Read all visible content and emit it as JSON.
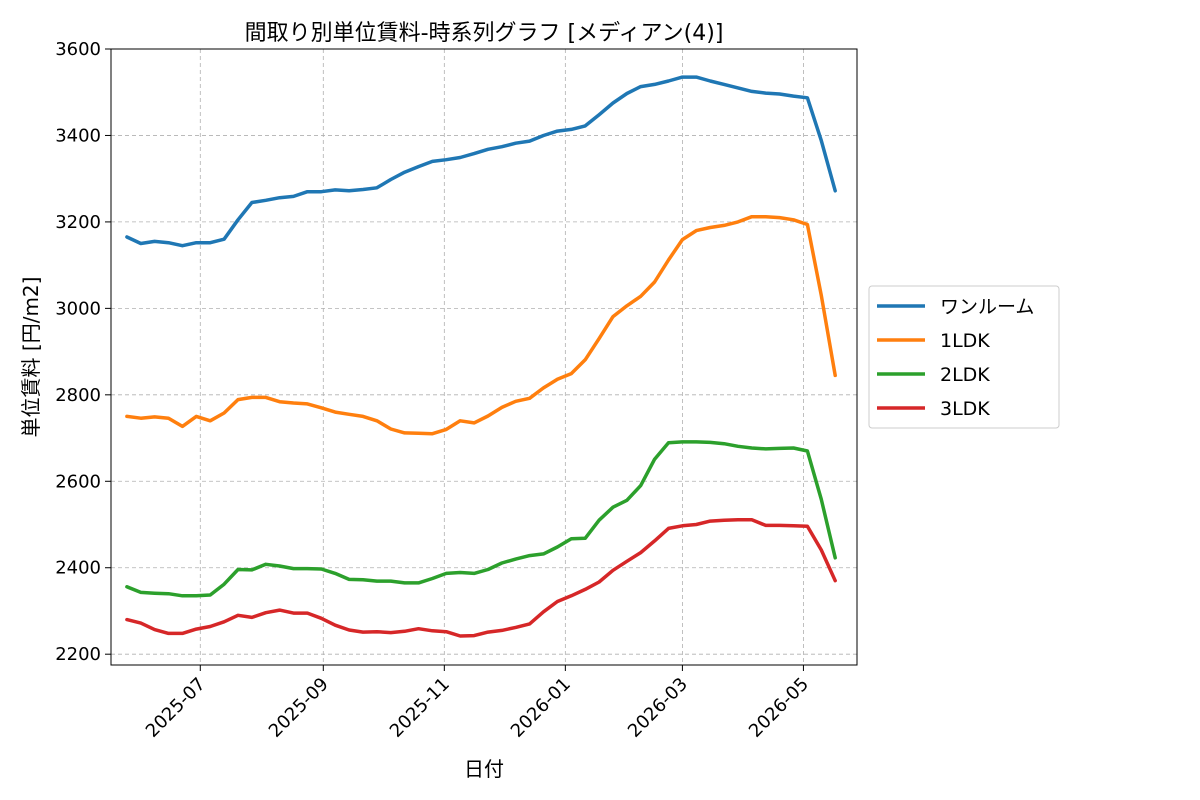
{
  "chart_data": {
    "type": "line",
    "title": "間取り別単位賃料-時系列グラフ [メディアン(4)]",
    "xlabel": "日付",
    "ylabel": "単位賃料 [円/m2]",
    "ylim": [
      2175,
      3600
    ],
    "y_ticks": [
      2200,
      2400,
      2600,
      2800,
      3000,
      3200,
      3400,
      3600
    ],
    "xlim": [
      "2025-05-17",
      "2026-05-28"
    ],
    "x_ticks": [
      {
        "date": "2025-07-01",
        "label": "2025-07"
      },
      {
        "date": "2025-09-01",
        "label": "2025-09"
      },
      {
        "date": "2025-11-01",
        "label": "2025-11"
      },
      {
        "date": "2026-01-01",
        "label": "2026-01"
      },
      {
        "date": "2026-03-01",
        "label": "2026-03"
      },
      {
        "date": "2026-05-01",
        "label": "2026-05"
      }
    ],
    "grid": true,
    "legend_position": "center-right outside",
    "x": [
      "2025-05-25",
      "2025-06-01",
      "2025-06-08",
      "2025-06-15",
      "2025-06-22",
      "2025-06-29",
      "2025-07-06",
      "2025-07-13",
      "2025-07-20",
      "2025-07-27",
      "2025-08-03",
      "2025-08-10",
      "2025-08-17",
      "2025-08-24",
      "2025-08-31",
      "2025-09-07",
      "2025-09-14",
      "2025-09-21",
      "2025-09-28",
      "2025-10-05",
      "2025-10-12",
      "2025-10-19",
      "2025-10-26",
      "2025-11-02",
      "2025-11-09",
      "2025-11-16",
      "2025-11-23",
      "2025-11-30",
      "2025-12-07",
      "2025-12-14",
      "2025-12-21",
      "2025-12-28",
      "2026-01-04",
      "2026-01-11",
      "2026-01-18",
      "2026-01-25",
      "2026-02-01",
      "2026-02-08",
      "2026-02-15",
      "2026-02-22",
      "2026-03-01",
      "2026-03-08",
      "2026-03-15",
      "2026-03-22",
      "2026-03-29",
      "2026-04-05",
      "2026-04-12",
      "2026-04-19",
      "2026-04-26",
      "2026-05-03",
      "2026-05-10",
      "2026-05-17"
    ],
    "series": [
      {
        "name": "ワンルーム",
        "color": "#1f77b4",
        "values": [
          3165,
          3150,
          3155,
          3152,
          3145,
          3152,
          3152,
          3160,
          3205,
          3245,
          3250,
          3256,
          3259,
          3270,
          3270,
          3274,
          3272,
          3275,
          3279,
          3298,
          3315,
          3328,
          3340,
          3344,
          3349,
          3358,
          3368,
          3374,
          3382,
          3387,
          3400,
          3410,
          3414,
          3422,
          3448,
          3475,
          3497,
          3513,
          3518,
          3526,
          3535,
          3535,
          3526,
          3518,
          3510,
          3502,
          3498,
          3496,
          3491,
          3487,
          3388,
          3272
        ]
      },
      {
        "name": "1LDK",
        "color": "#ff7f0e",
        "values": [
          2750,
          2746,
          2749,
          2746,
          2727,
          2750,
          2740,
          2758,
          2789,
          2794,
          2794,
          2784,
          2781,
          2779,
          2770,
          2760,
          2755,
          2750,
          2740,
          2721,
          2712,
          2711,
          2710,
          2720,
          2740,
          2735,
          2751,
          2771,
          2785,
          2792,
          2816,
          2836,
          2849,
          2881,
          2930,
          2981,
          3006,
          3028,
          3061,
          3112,
          3159,
          3180,
          3187,
          3192,
          3200,
          3212,
          3212,
          3210,
          3205,
          3194,
          3030,
          2845
        ]
      },
      {
        "name": "2LDK",
        "color": "#2ca02c",
        "values": [
          2356,
          2343,
          2341,
          2340,
          2335,
          2335,
          2337,
          2362,
          2396,
          2395,
          2408,
          2404,
          2398,
          2398,
          2397,
          2387,
          2373,
          2372,
          2369,
          2369,
          2365,
          2365,
          2375,
          2387,
          2389,
          2387,
          2396,
          2411,
          2420,
          2428,
          2432,
          2448,
          2467,
          2468,
          2510,
          2540,
          2556,
          2590,
          2651,
          2689,
          2691,
          2691,
          2690,
          2687,
          2681,
          2677,
          2675,
          2676,
          2677,
          2670,
          2558,
          2423
        ]
      },
      {
        "name": "3LDK",
        "color": "#d62728",
        "values": [
          2280,
          2272,
          2257,
          2248,
          2248,
          2258,
          2264,
          2275,
          2290,
          2285,
          2296,
          2302,
          2295,
          2295,
          2283,
          2267,
          2256,
          2251,
          2252,
          2250,
          2253,
          2259,
          2254,
          2252,
          2242,
          2243,
          2251,
          2255,
          2262,
          2270,
          2298,
          2322,
          2335,
          2350,
          2367,
          2394,
          2415,
          2435,
          2462,
          2491,
          2497,
          2500,
          2508,
          2510,
          2511,
          2511,
          2498,
          2498,
          2497,
          2496,
          2441,
          2370
        ]
      }
    ]
  }
}
